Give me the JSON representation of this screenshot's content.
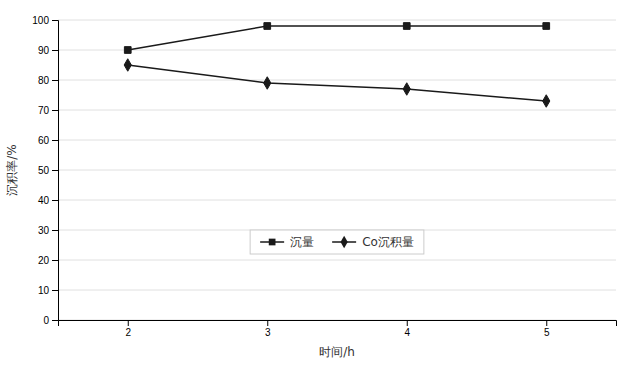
{
  "chart_data": {
    "type": "line",
    "x": [
      2,
      3,
      4,
      5
    ],
    "xlabel": "时间/h",
    "ylabel": "沉积率/%",
    "xlim": [
      1.5,
      5.5
    ],
    "ylim": [
      0,
      100
    ],
    "xticks": [
      2,
      3,
      4,
      5
    ],
    "yticks": [
      0,
      10,
      20,
      30,
      40,
      50,
      60,
      70,
      80,
      90,
      100
    ],
    "grid": true,
    "legend": "bottom",
    "series": [
      {
        "name": "沉量",
        "color": "#1a1a1a",
        "marker": "square",
        "values": [
          90,
          98,
          98,
          98
        ]
      },
      {
        "name": "Co沉积量",
        "color": "#1a1a1a",
        "marker": "diamond",
        "values": [
          85,
          79,
          77,
          73
        ]
      }
    ]
  }
}
